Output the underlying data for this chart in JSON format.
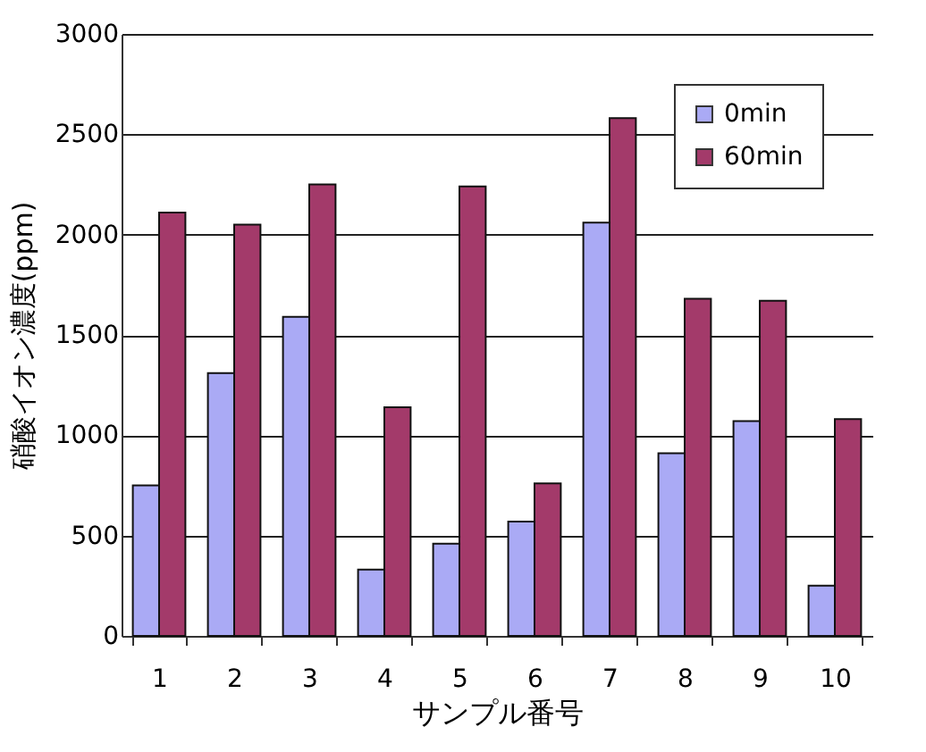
{
  "chart_data": {
    "type": "bar",
    "xlabel": "サンプル番号",
    "ylabel": "硝酸イオン濃度(ppm)",
    "categories": [
      "1",
      "2",
      "3",
      "4",
      "5",
      "6",
      "7",
      "8",
      "9",
      "10"
    ],
    "series": [
      {
        "name": "0min",
        "color": "#aaaaf5",
        "values": [
          750,
          1310,
          1590,
          330,
          460,
          570,
          2060,
          910,
          1070,
          250
        ]
      },
      {
        "name": "60min",
        "color": "#a33a6a",
        "values": [
          2110,
          2050,
          2250,
          1140,
          2240,
          760,
          2580,
          1680,
          1670,
          1080
        ]
      }
    ],
    "ylim": [
      0,
      3000
    ],
    "yticks": [
      0,
      500,
      1000,
      1500,
      2000,
      2500,
      3000
    ],
    "grid": "y",
    "legend": "top right"
  }
}
